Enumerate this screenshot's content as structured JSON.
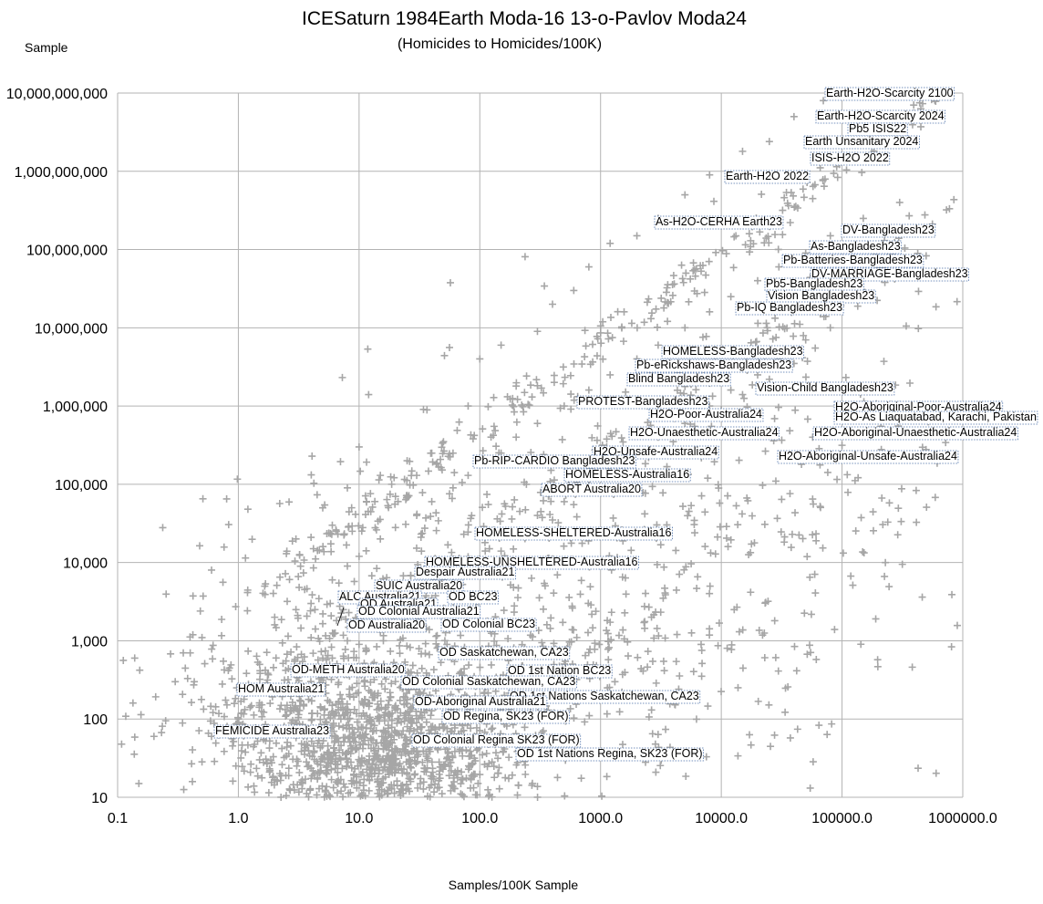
{
  "chart_data": {
    "type": "scatter",
    "title": "ICESaturn 1984Earth Moda-16 13-o-Pavlov Moda24",
    "subtitle": "(Homicides to Homicides/100K)",
    "xlabel": "Samples/100K Sample",
    "ylabel": "Sample",
    "x_scale": "log",
    "y_scale": "log",
    "xlim": [
      0.1,
      1000000
    ],
    "ylim": [
      10,
      10000000000
    ],
    "grid": true,
    "marker": "+",
    "marker_color": "#a6a6a6",
    "x_ticks": [
      "0.1",
      "1.0",
      "10.0",
      "100.0",
      "1000.0",
      "10000.0",
      "100000.0",
      "1000000.0"
    ],
    "y_ticks": [
      "10",
      "100",
      "1,000",
      "10,000",
      "100,000",
      "1,000,000",
      "10,000,000",
      "100,000,000",
      "1,000,000,000",
      "10,000,000,000"
    ],
    "series": [
      {
        "points": [
          [
            0.15,
            15
          ],
          [
            0.2,
            60
          ],
          [
            0.25,
            95
          ],
          [
            0.3,
            300
          ],
          [
            0.35,
            700
          ],
          [
            0.5,
            1100
          ],
          [
            0.6,
            8000
          ],
          [
            0.8,
            65000
          ],
          [
            1.2,
            48000
          ],
          [
            1.5,
            500
          ],
          [
            2.0,
            2000
          ],
          [
            2.5,
            13000
          ],
          [
            3,
            20000
          ],
          [
            4,
            21000
          ],
          [
            5,
            50000
          ],
          [
            6,
            30000
          ],
          [
            8,
            90000
          ],
          [
            10,
            300000
          ],
          [
            12,
            1400000
          ],
          [
            15,
            130000
          ],
          [
            20,
            70000
          ],
          [
            25,
            200000
          ],
          [
            30,
            130000
          ],
          [
            40,
            250000
          ],
          [
            50,
            350000
          ],
          [
            60,
            250000
          ],
          [
            80,
            1000000
          ],
          [
            100,
            4000000
          ],
          [
            150,
            6000000
          ],
          [
            200,
            1800000
          ],
          [
            300,
            9000000
          ],
          [
            400,
            20000000
          ],
          [
            600,
            30000000
          ],
          [
            800,
            60000000
          ],
          [
            1200,
            120000000
          ],
          [
            2000,
            150000000
          ],
          [
            3000,
            250000000
          ],
          [
            5000,
            500000000
          ],
          [
            8000,
            900000000
          ],
          [
            15000,
            1800000000
          ],
          [
            25000,
            2400000000
          ],
          [
            40000,
            5000000000
          ],
          [
            70000,
            8000000000
          ]
        ]
      },
      {
        "points": [
          [
            2,
            1600
          ],
          [
            3,
            2500
          ],
          [
            4,
            3000
          ],
          [
            6,
            6000
          ],
          [
            8,
            9000
          ],
          [
            10,
            12000
          ],
          [
            15,
            20000
          ],
          [
            20,
            28000
          ],
          [
            30,
            40000
          ],
          [
            40,
            60000
          ],
          [
            60,
            90000
          ],
          [
            80,
            130000
          ],
          [
            100,
            180000
          ],
          [
            150,
            250000
          ],
          [
            200,
            400000
          ],
          [
            300,
            600000
          ],
          [
            500,
            1000000
          ],
          [
            800,
            1600000
          ],
          [
            1200,
            2500000
          ],
          [
            2000,
            4000000
          ],
          [
            3000,
            6000000
          ],
          [
            5000,
            10000000
          ],
          [
            8000,
            16000000
          ],
          [
            12000,
            25000000
          ],
          [
            20000,
            40000000
          ],
          [
            30000,
            60000000
          ],
          [
            50000,
            90000000
          ],
          [
            80000,
            150000000
          ],
          [
            150000,
            250000000
          ],
          [
            300000,
            400000000
          ]
        ]
      },
      {
        "points": [
          [
            5,
            600
          ],
          [
            8,
            1000
          ],
          [
            12,
            1500
          ],
          [
            20,
            2500
          ],
          [
            30,
            4000
          ],
          [
            50,
            6000
          ],
          [
            80,
            10000
          ],
          [
            120,
            15000
          ],
          [
            200,
            25000
          ],
          [
            300,
            40000
          ],
          [
            500,
            60000
          ],
          [
            800,
            100000
          ],
          [
            1200,
            150000
          ],
          [
            2000,
            250000
          ],
          [
            3000,
            400000
          ],
          [
            5000,
            600000
          ],
          [
            8000,
            1000000
          ],
          [
            12000,
            1600000
          ],
          [
            20000,
            2500000
          ],
          [
            30000,
            4000000
          ],
          [
            50000,
            7000000
          ],
          [
            80000,
            10000000
          ]
        ]
      },
      {
        "points": [
          [
            0.6,
            60
          ],
          [
            1,
            100
          ],
          [
            1.5,
            150
          ],
          [
            2.5,
            220
          ],
          [
            4,
            400
          ],
          [
            6,
            600
          ],
          [
            10,
            900
          ],
          [
            15,
            1300
          ],
          [
            25,
            2000
          ],
          [
            40,
            3500
          ],
          [
            60,
            5500
          ],
          [
            100,
            9000
          ],
          [
            150,
            14000
          ],
          [
            250,
            22000
          ],
          [
            400,
            35000
          ],
          [
            600,
            55000
          ],
          [
            1000,
            90000
          ],
          [
            1500,
            140000
          ],
          [
            2500,
            220000
          ],
          [
            4000,
            350000
          ],
          [
            6000,
            550000
          ],
          [
            10000,
            900000
          ],
          [
            15000,
            1400000
          ],
          [
            25000,
            2200000
          ],
          [
            40000,
            3500000
          ],
          [
            60000,
            5500000
          ]
        ]
      }
    ],
    "annotations": [
      "Earth-H2O-Scarcity 2100",
      "Earth-H2O-Scarcity 2024",
      "Pb5 ISIS22",
      "Earth Unsanitary 2024",
      "ISIS-H2O 2022",
      "Earth-H2O 2022",
      "As-H2O-CERHA Earth23",
      "DV-Bangladesh23",
      "As-Bangladesh23",
      "Pb-Batteries-Bangladesh23",
      "DV-MARRIAGE-Bangladesh23",
      "Pb5-Bangladesh23",
      "Vision Bangladesh23",
      "Pb-IQ Bangladesh23",
      "HOMELESS-Bangladesh23",
      "Pb-eRickshaws-Bangladesh23",
      "Blind Bangladesh23",
      "Vision-Child Bangladesh23",
      "PROTEST-Bangladesh23",
      "H2O-Aboriginal-Poor-Australia24",
      "H2O-Poor-Australia24",
      "H2O-As Liaquatabad, Karachi, Pakistan",
      "H2O-Unaesthetic-Australia24",
      "H2O-Aboriginal-Unaesthetic-Australia24",
      "H2O-Unsafe-Australia24",
      "H2O-Aboriginal-Unsafe-Australia24",
      "Pb-RIP-CARDIO Bangladesh23",
      "HOMELESS-Australia16",
      "ABORT Australia20",
      "HOMELESS-SHELTERED-Australia16",
      "HOMELESS-UNSHELTERED-Australia16",
      "Despair Australia21",
      "SUIC Australia20",
      "ALC Australia21",
      "OD BC23",
      "OD Australia21",
      "OD Colonial Australia21",
      "OD Australia20",
      "OD Colonial BC23",
      "OD Saskatchewan, CA23",
      "OD-METH Australia20",
      "OD 1st Nation BC23",
      "OD Colonial Saskatchewan, CA23",
      "HOM Australia21",
      "OD 1st Nations Saskatchewan, CA23",
      "OD-Aboriginal Australia21",
      "OD Regina, SK23 (FOR)",
      "FEMICIDE Australia23",
      "OD Colonial Regina SK23 (FOR)",
      "OD 1st Nations Regina, SK23 (FOR)"
    ]
  }
}
